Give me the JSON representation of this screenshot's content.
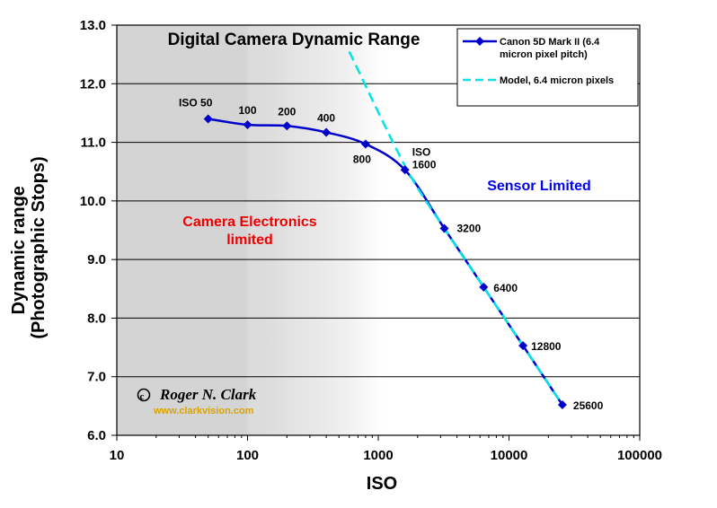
{
  "chart_data": {
    "type": "line",
    "title": "Digital Camera Dynamic Range",
    "xlabel": "ISO",
    "ylabel_lines": [
      "Dynamic range",
      "(Photographic Stops)"
    ],
    "x_scale": "log",
    "xlim": [
      10,
      100000
    ],
    "ylim": [
      6.0,
      13.0
    ],
    "x_ticks": [
      "10",
      "100",
      "1000",
      "10000",
      "100000"
    ],
    "y_ticks": [
      "6.0",
      "7.0",
      "8.0",
      "9.0",
      "10.0",
      "11.0",
      "12.0",
      "13.0"
    ],
    "grid": "horizontal",
    "legend_position": "top-right",
    "series": [
      {
        "name": "Canon 5D Mark II (6.4 micron pixel pitch)",
        "name_lines": [
          "Canon 5D Mark II (6.4",
          "micron pixel pitch)"
        ],
        "color": "#0000cc",
        "marker": "diamond",
        "x": [
          50,
          100,
          200,
          400,
          800,
          1600,
          3200,
          6400,
          12800,
          25600
        ],
        "y": [
          11.4,
          11.3,
          11.28,
          11.17,
          10.97,
          10.53,
          9.53,
          8.53,
          7.53,
          6.52
        ]
      },
      {
        "name": "Model, 6.4 micron pixels",
        "color": "#00e5e5",
        "style": "dashed",
        "x": [
          600,
          1600,
          3200,
          6400,
          12800,
          25600
        ],
        "y": [
          12.55,
          10.6,
          9.53,
          8.53,
          7.53,
          6.52
        ]
      }
    ],
    "point_labels": [
      {
        "x": 50,
        "y": 11.4,
        "lines": [
          "ISO 50"
        ]
      },
      {
        "x": 100,
        "y": 11.3,
        "lines": [
          "100"
        ]
      },
      {
        "x": 200,
        "y": 11.28,
        "lines": [
          "200"
        ]
      },
      {
        "x": 400,
        "y": 11.17,
        "lines": [
          "400"
        ]
      },
      {
        "x": 800,
        "y": 10.97,
        "lines": [
          "800"
        ]
      },
      {
        "x": 1600,
        "y": 10.53,
        "lines": [
          "ISO",
          "1600"
        ]
      },
      {
        "x": 3200,
        "y": 9.53,
        "lines": [
          "3200"
        ]
      },
      {
        "x": 6400,
        "y": 8.53,
        "lines": [
          "6400"
        ]
      },
      {
        "x": 12800,
        "y": 7.53,
        "lines": [
          "12800"
        ]
      },
      {
        "x": 25600,
        "y": 6.52,
        "lines": [
          "25600"
        ]
      }
    ],
    "region_labels": [
      {
        "lines": [
          "Camera Electronics",
          "limited"
        ],
        "color": "#ee0000"
      },
      {
        "lines": [
          "Sensor Limited"
        ],
        "color": "#0000ee"
      }
    ],
    "credit": "© Roger N. Clark",
    "credit_url": "www.clarkvision.com"
  }
}
